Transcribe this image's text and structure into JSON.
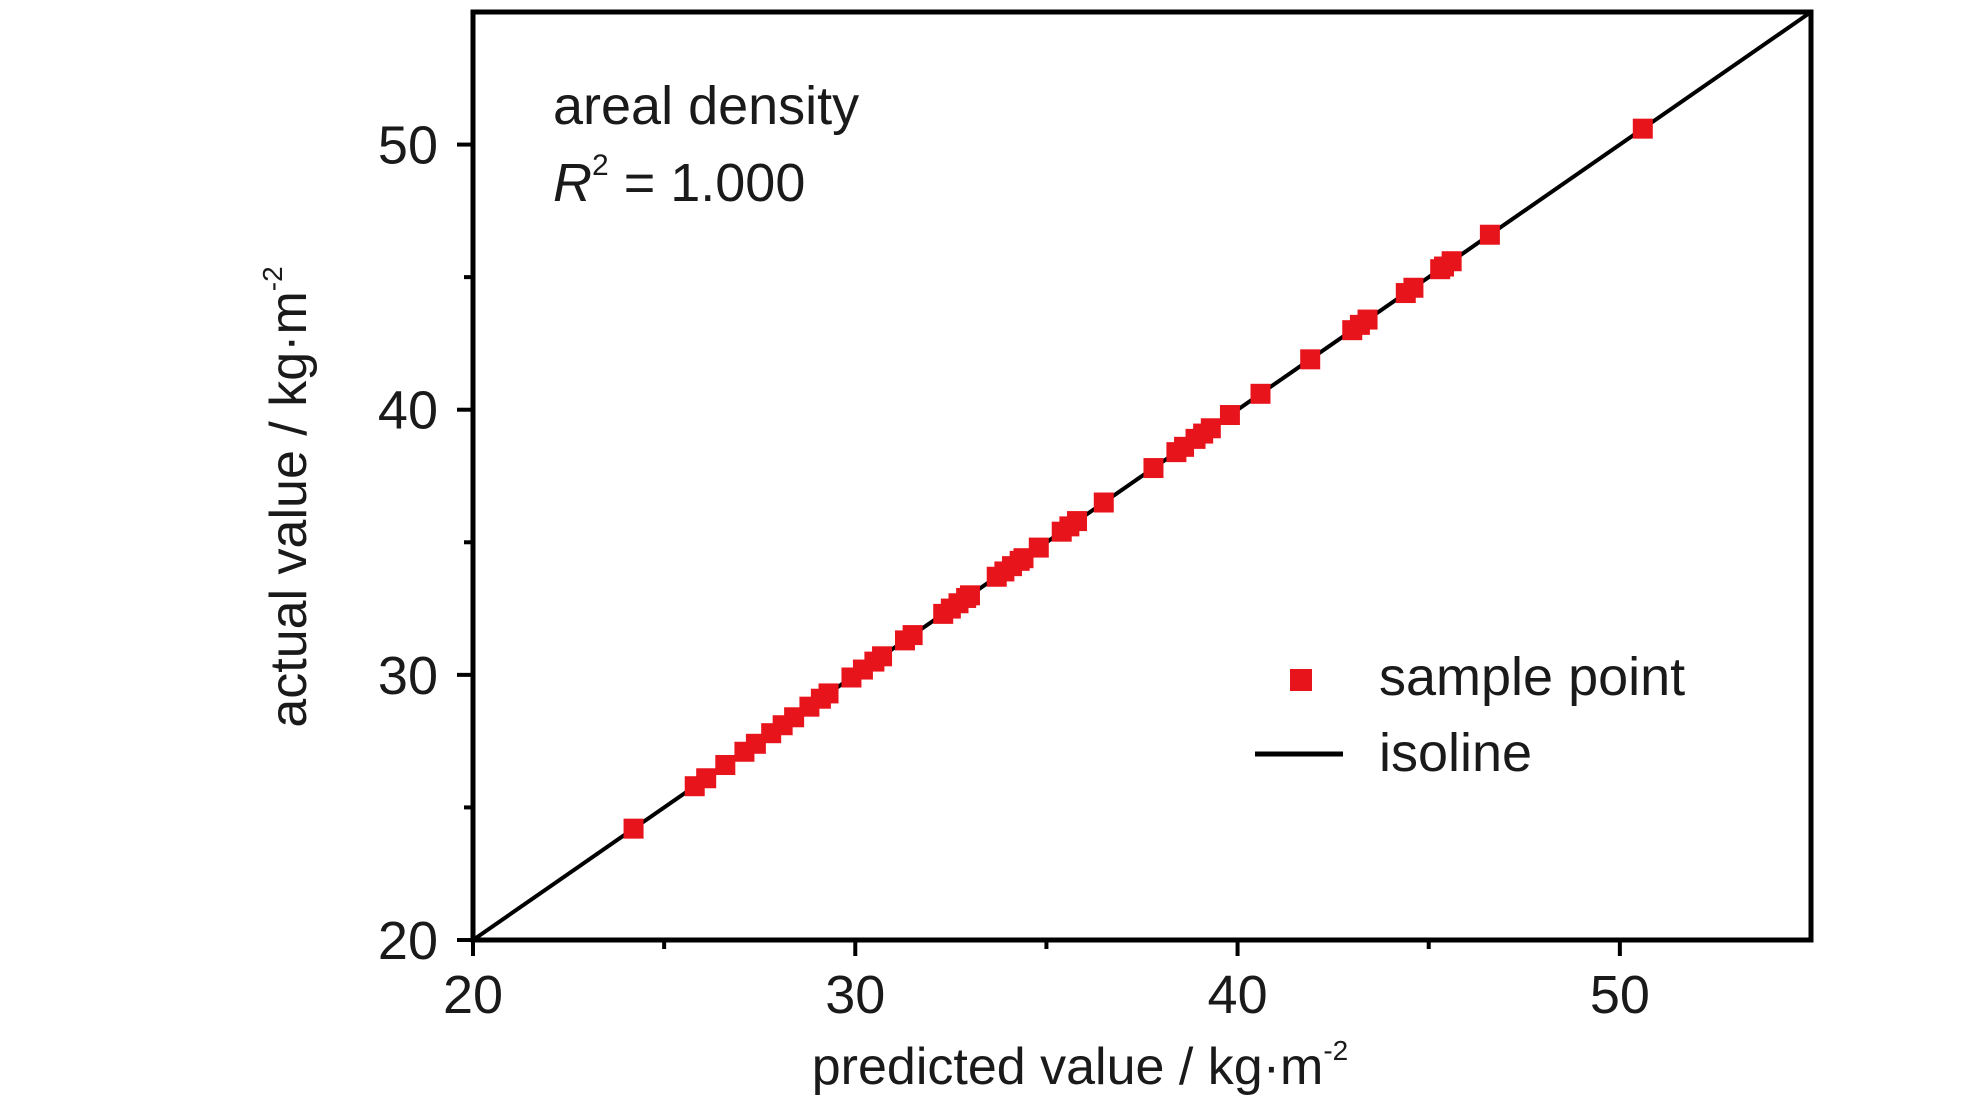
{
  "chart_data": {
    "type": "scatter",
    "xlabel": "predicted value / kg·m",
    "xlabel_sup": "-2",
    "ylabel": "actual value / kg·m",
    "ylabel_sup": "-2",
    "xlim": [
      20,
      55
    ],
    "ylim": [
      20,
      55
    ],
    "xticks": [
      "20",
      "30",
      "40",
      "50"
    ],
    "yticks": [
      "20",
      "30",
      "40",
      "50"
    ],
    "annotation": {
      "line1": "areal density",
      "r_symbol": "R",
      "r_sup": "2",
      "r_value": " = 1.000"
    },
    "legend": {
      "position": "lower-right",
      "items": [
        {
          "label": "sample point",
          "kind": "marker",
          "color": "#e8141c"
        },
        {
          "label": "isoline",
          "kind": "line",
          "color": "#000000"
        }
      ]
    },
    "series": [
      {
        "name": "sample point",
        "color": "#e8141c",
        "x": [
          24.2,
          25.8,
          26.1,
          26.6,
          27.1,
          27.4,
          27.8,
          28.1,
          28.4,
          28.8,
          29.1,
          29.3,
          29.9,
          30.2,
          30.5,
          30.7,
          31.3,
          31.5,
          32.3,
          32.5,
          32.7,
          32.9,
          33.0,
          33.7,
          33.9,
          34.1,
          34.3,
          34.4,
          34.8,
          35.4,
          35.6,
          35.8,
          36.5,
          37.8,
          38.4,
          38.6,
          38.9,
          39.1,
          39.3,
          39.8,
          40.6,
          41.9,
          43.0,
          43.2,
          43.4,
          44.4,
          44.6,
          45.3,
          45.4,
          45.6,
          46.6,
          50.6
        ],
        "y": [
          24.2,
          25.8,
          26.1,
          26.6,
          27.1,
          27.4,
          27.8,
          28.1,
          28.4,
          28.8,
          29.1,
          29.3,
          29.9,
          30.2,
          30.5,
          30.7,
          31.3,
          31.5,
          32.3,
          32.5,
          32.7,
          32.9,
          33.0,
          33.7,
          33.9,
          34.1,
          34.3,
          34.4,
          34.8,
          35.4,
          35.6,
          35.8,
          36.5,
          37.8,
          38.4,
          38.6,
          38.9,
          39.1,
          39.3,
          39.8,
          40.6,
          41.9,
          43.0,
          43.2,
          43.4,
          44.4,
          44.6,
          45.3,
          45.4,
          45.6,
          46.6,
          50.6
        ]
      },
      {
        "name": "isoline",
        "color": "#000000",
        "x": [
          20,
          55
        ],
        "y": [
          20,
          55
        ]
      }
    ]
  }
}
